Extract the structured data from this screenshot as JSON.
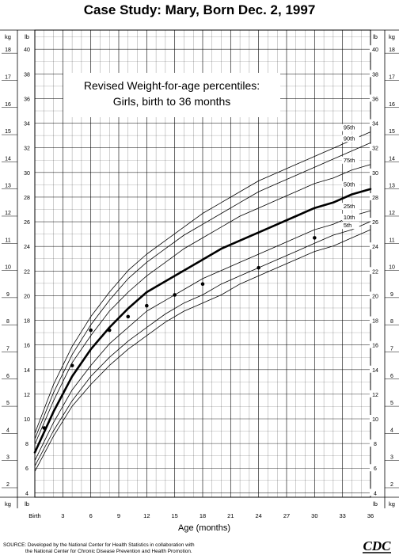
{
  "page": {
    "title": "Case Study: Mary, Born Dec. 2, 1997"
  },
  "source_note": {
    "line1": "SOURCE: Developed by the National Center for Health Statistics in collaboration with",
    "line2": "the National Center for Chronic Disease Prevention and Health Promotion."
  },
  "logo": {
    "text": "CDC"
  },
  "chart_data": {
    "type": "line",
    "title": "Revised Weight-for-age percentiles:",
    "subtitle": "Girls, birth to 36 months",
    "xlabel": "Age (months)",
    "x_ticks": [
      {
        "value": 0,
        "label": "Birth"
      },
      {
        "value": 3,
        "label": "3"
      },
      {
        "value": 6,
        "label": "6"
      },
      {
        "value": 9,
        "label": "9"
      },
      {
        "value": 12,
        "label": "12"
      },
      {
        "value": 15,
        "label": "15"
      },
      {
        "value": 18,
        "label": "18"
      },
      {
        "value": 21,
        "label": "21"
      },
      {
        "value": 24,
        "label": "24"
      },
      {
        "value": 27,
        "label": "27"
      },
      {
        "value": 30,
        "label": "30"
      },
      {
        "value": 33,
        "label": "33"
      },
      {
        "value": 36,
        "label": "36"
      }
    ],
    "xlim": [
      0,
      36
    ],
    "ylim_kg": [
      1.65,
      18.85
    ],
    "left_unit_label": "kg",
    "right_unit_label": "lb",
    "kg_ticks": [
      "2",
      "3",
      "4",
      "5",
      "6",
      "7",
      "8",
      "9",
      "10",
      "11",
      "12",
      "13",
      "14",
      "15",
      "16",
      "17",
      "18"
    ],
    "lb_ticks": [
      "4",
      "6",
      "8",
      "10",
      "12",
      "14",
      "16",
      "18",
      "20",
      "22",
      "24",
      "26",
      "28",
      "30",
      "32",
      "34",
      "36",
      "38",
      "40"
    ],
    "grid": true,
    "series": [
      {
        "name": "95th",
        "values_kg": [
          4.0,
          5.8,
          7.2,
          8.3,
          9.2,
          10.0,
          10.6,
          11.1,
          11.6,
          12.1,
          12.5,
          12.9,
          13.3,
          13.6,
          13.9,
          14.2,
          14.5,
          14.8,
          15.1
        ]
      },
      {
        "name": "90th",
        "values_kg": [
          3.8,
          5.5,
          6.9,
          8.0,
          8.9,
          9.7,
          10.3,
          10.8,
          11.3,
          11.7,
          12.1,
          12.5,
          12.9,
          13.2,
          13.5,
          13.8,
          14.1,
          14.4,
          14.7
        ]
      },
      {
        "name": "75th",
        "values_kg": [
          3.6,
          5.2,
          6.6,
          7.6,
          8.5,
          9.2,
          9.8,
          10.3,
          10.8,
          11.2,
          11.6,
          12.0,
          12.3,
          12.6,
          12.9,
          13.2,
          13.4,
          13.7,
          13.9
        ]
      },
      {
        "name": "50th",
        "values_kg": [
          3.3,
          4.8,
          6.1,
          7.1,
          7.9,
          8.6,
          9.2,
          9.6,
          10.0,
          10.4,
          10.8,
          11.1,
          11.4,
          11.7,
          12.0,
          12.3,
          12.5,
          12.8,
          13.0
        ]
      },
      {
        "name": "25th",
        "values_kg": [
          3.0,
          4.4,
          5.6,
          6.5,
          7.3,
          7.9,
          8.5,
          8.9,
          9.3,
          9.7,
          10.0,
          10.3,
          10.6,
          10.9,
          11.2,
          11.5,
          11.7,
          12.0,
          12.2
        ]
      },
      {
        "name": "10th",
        "values_kg": [
          2.8,
          4.1,
          5.2,
          6.1,
          6.8,
          7.4,
          7.9,
          8.4,
          8.8,
          9.1,
          9.5,
          9.8,
          10.1,
          10.4,
          10.7,
          11.0,
          11.3,
          11.5,
          11.8
        ]
      },
      {
        "name": "5th",
        "values_kg": [
          2.6,
          3.9,
          5.0,
          5.8,
          6.5,
          7.1,
          7.6,
          8.1,
          8.5,
          8.8,
          9.1,
          9.5,
          9.8,
          10.1,
          10.4,
          10.7,
          10.9,
          11.2,
          11.5
        ]
      }
    ],
    "curve_ages": [
      0,
      2,
      4,
      6,
      8,
      10,
      12,
      14,
      16,
      18,
      20,
      22,
      24,
      26,
      28,
      30,
      32,
      34,
      36
    ],
    "highlight_series": "50th",
    "patient_points": [
      {
        "age": 1,
        "kg": 4.2
      },
      {
        "age": 4,
        "kg": 6.5
      },
      {
        "age": 6,
        "kg": 7.8
      },
      {
        "age": 8,
        "kg": 7.8
      },
      {
        "age": 10,
        "kg": 8.3
      },
      {
        "age": 12,
        "kg": 8.7
      },
      {
        "age": 15,
        "kg": 9.1
      },
      {
        "age": 18,
        "kg": 9.5
      },
      {
        "age": 24,
        "kg": 10.1
      },
      {
        "age": 30,
        "kg": 11.2
      }
    ]
  }
}
